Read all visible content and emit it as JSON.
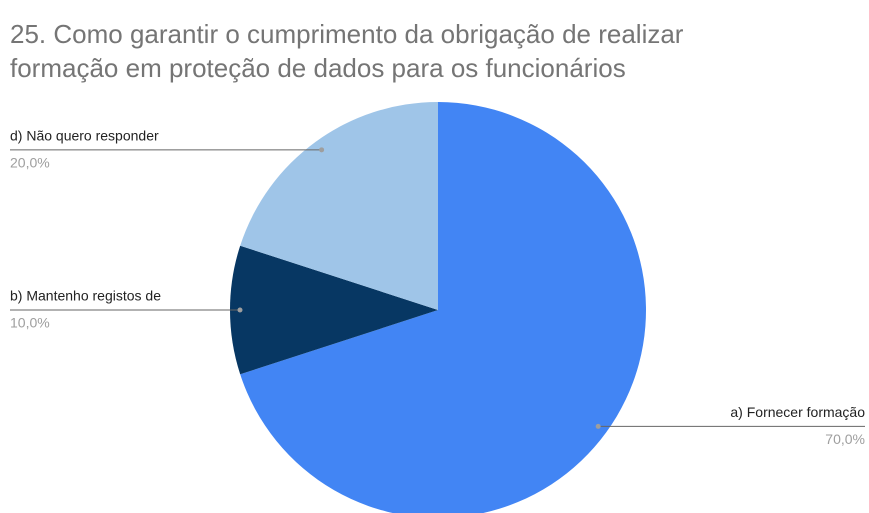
{
  "chart_data": {
    "type": "pie",
    "title": [
      "25. Como garantir o cumprimento da obrigação de realizar",
      "formação em proteção de dados para os funcionários"
    ],
    "categories": [
      "a) Fornecer formação",
      "b) Mantenho registos de",
      "d) Não quero responder"
    ],
    "values": [
      70,
      10,
      20
    ],
    "value_labels": [
      "70,0%",
      "10,0%",
      "20,0%"
    ],
    "colors": [
      "#4285f4",
      "#073763",
      "#9fc5e8"
    ]
  }
}
